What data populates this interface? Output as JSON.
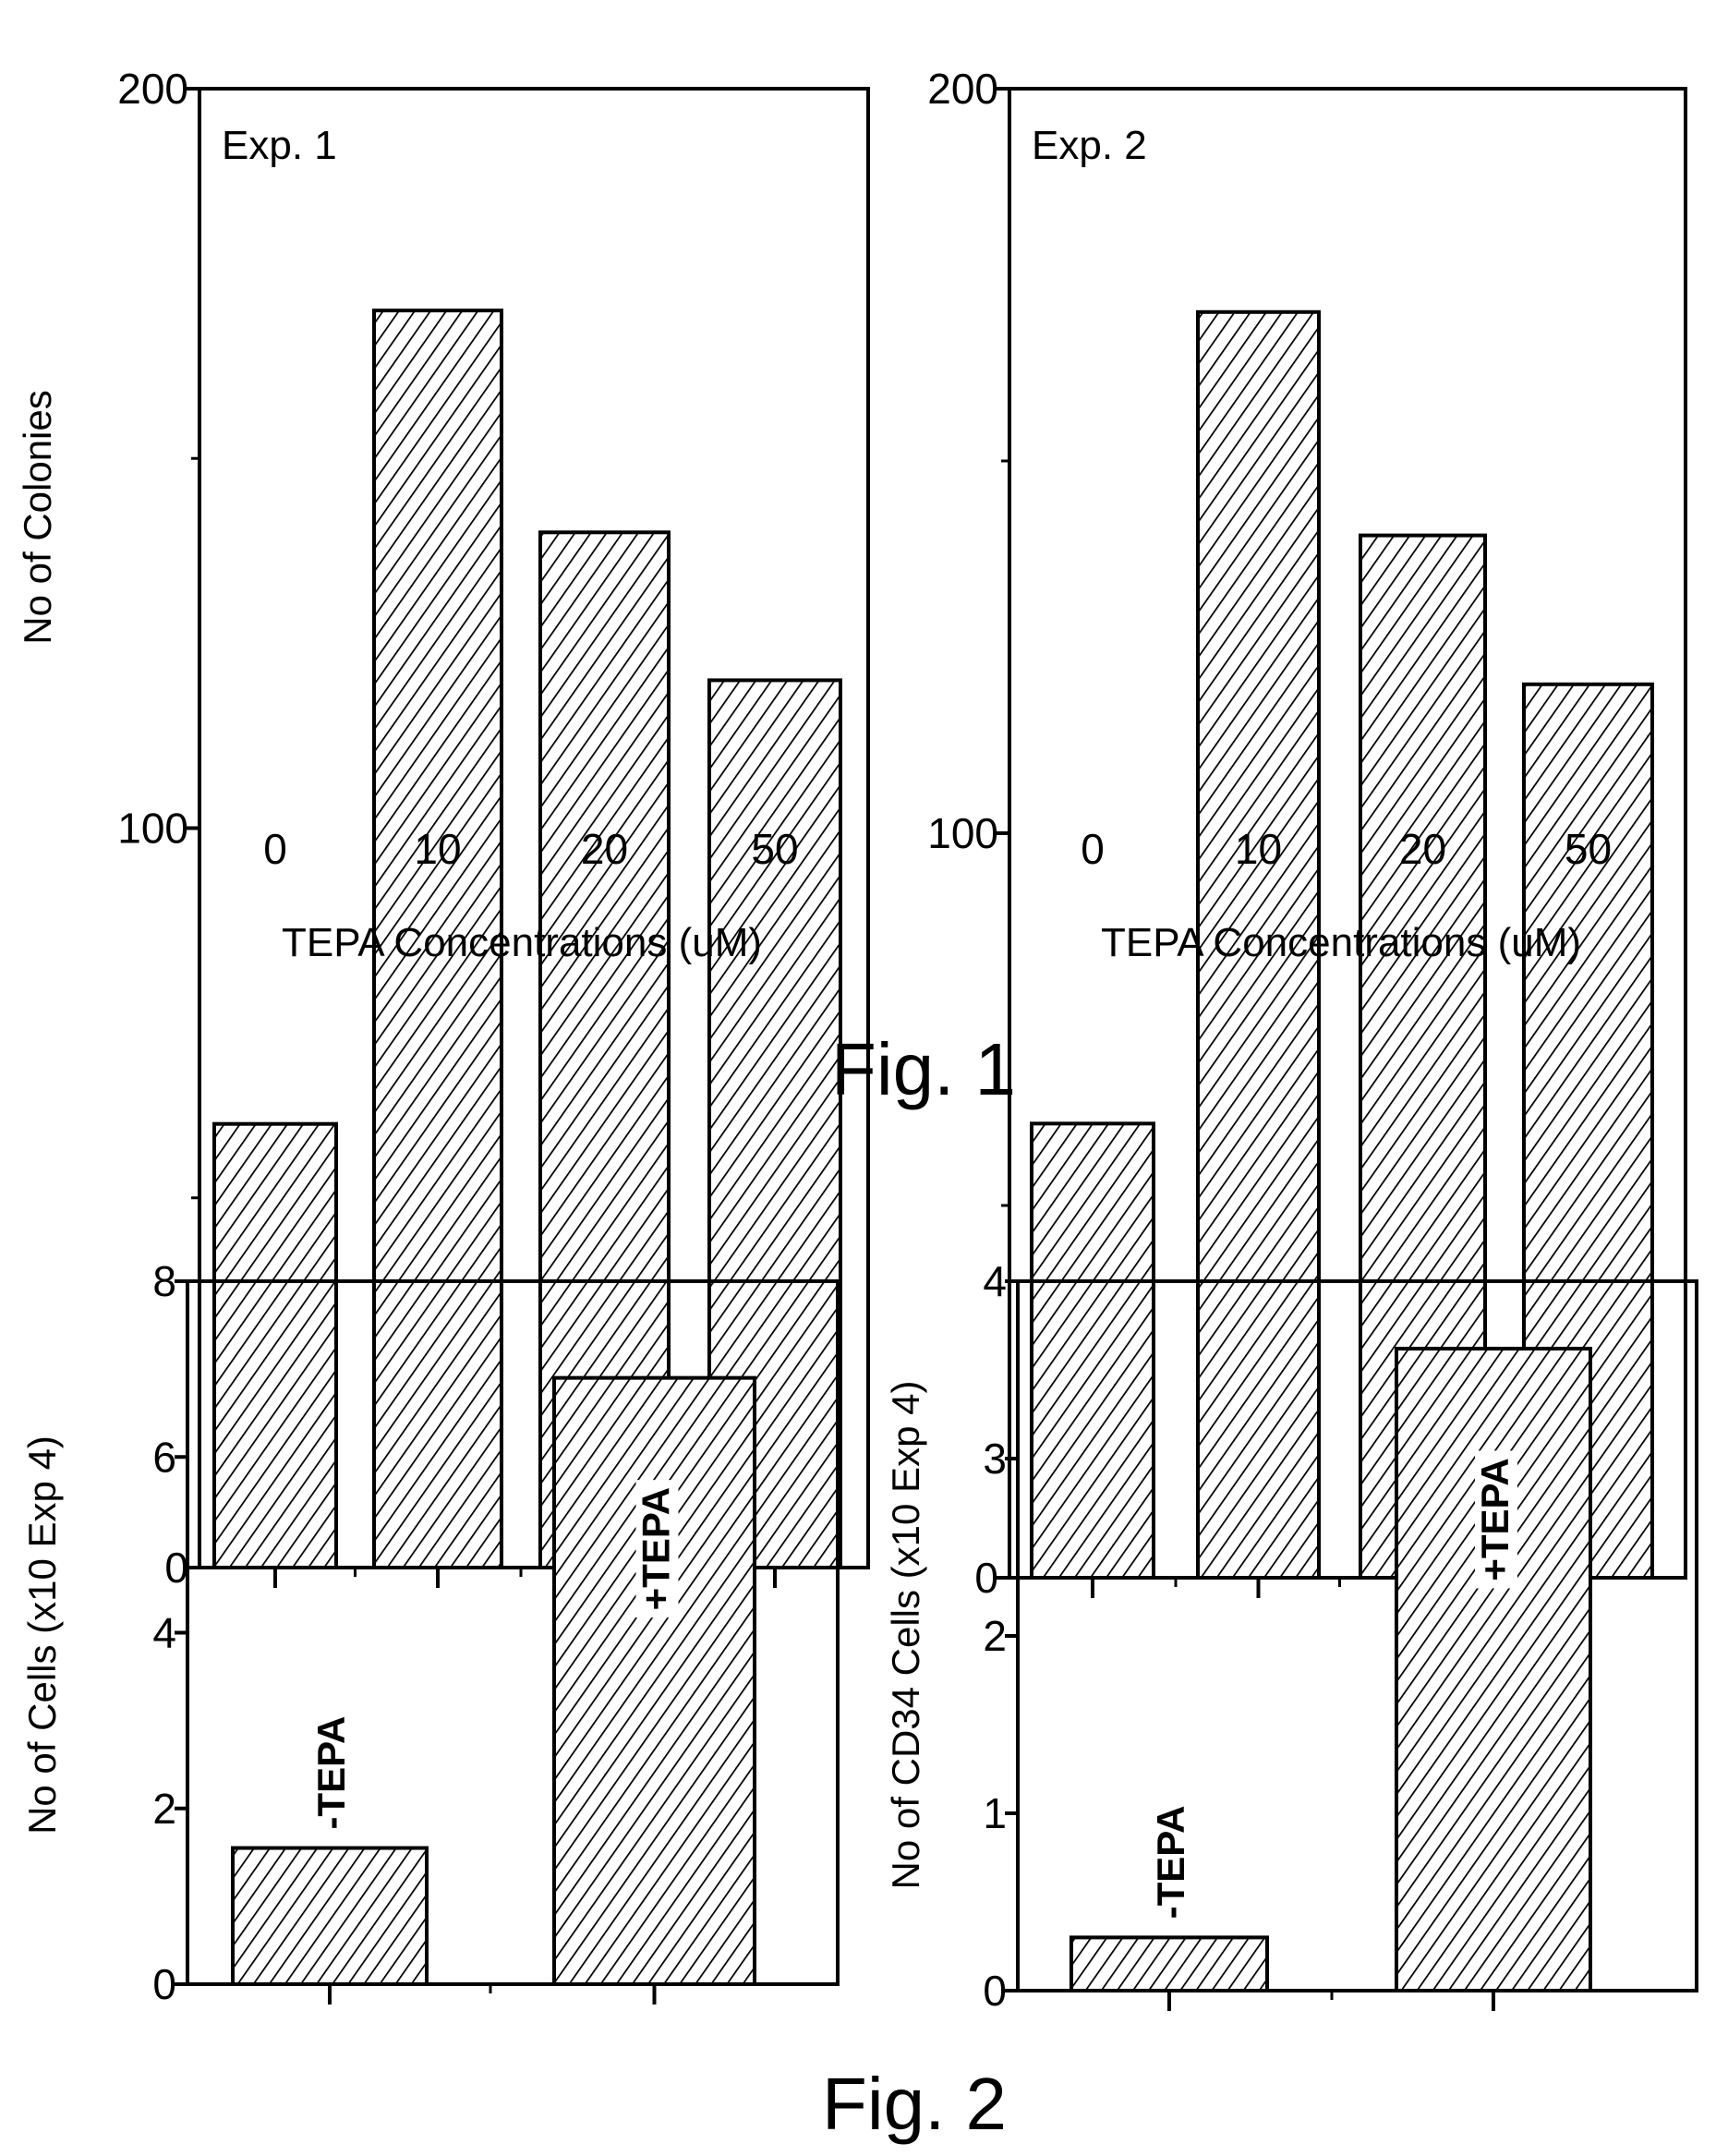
{
  "figures": [
    {
      "caption": "Fig. 1"
    },
    {
      "caption": "Fig. 2"
    }
  ],
  "chart_data": [
    {
      "type": "bar",
      "figure": "Fig. 1",
      "annotation": "Exp. 1",
      "categories": [
        "0",
        "10",
        "20",
        "50"
      ],
      "values": [
        60,
        170,
        140,
        120
      ],
      "xlabel": "TEPA Concentrations (uM)",
      "ylabel": "No of Colonies",
      "ylim": [
        0,
        200
      ],
      "yticks": [
        0,
        100,
        200
      ],
      "yminor": [
        50,
        150
      ],
      "pattern": "diagonal-hatch",
      "grid": false
    },
    {
      "type": "bar",
      "figure": "Fig. 1",
      "annotation": "Exp. 2",
      "categories": [
        "0",
        "10",
        "20",
        "50"
      ],
      "values": [
        61,
        170,
        140,
        120
      ],
      "xlabel": "TEPA Concentrations (uM)",
      "ylabel": "",
      "ylim": [
        0,
        200
      ],
      "yticks": [
        0,
        100,
        200
      ],
      "yminor": [
        50,
        150
      ],
      "pattern": "diagonal-hatch",
      "grid": false
    },
    {
      "type": "bar",
      "figure": "Fig. 2",
      "categories": [
        "-TEPA",
        "+TEPA"
      ],
      "values": [
        1.55,
        6.9
      ],
      "xlabel": "",
      "ylabel": "No of Cells (x10 Exp 4)",
      "ylim": [
        0,
        8
      ],
      "yticks": [
        0,
        2,
        4,
        6,
        8
      ],
      "yminor": [],
      "pattern": "diagonal-hatch",
      "grid": false
    },
    {
      "type": "bar",
      "figure": "Fig. 2",
      "categories": [
        "-TEPA",
        "+TEPA"
      ],
      "values": [
        0.3,
        3.62
      ],
      "xlabel": "",
      "ylabel": "No of CD34 Cells (x10 Exp 4)",
      "ylim": [
        0,
        4
      ],
      "yticks": [
        0,
        1,
        2,
        3,
        4
      ],
      "yminor": [],
      "pattern": "diagonal-hatch",
      "grid": false
    }
  ]
}
